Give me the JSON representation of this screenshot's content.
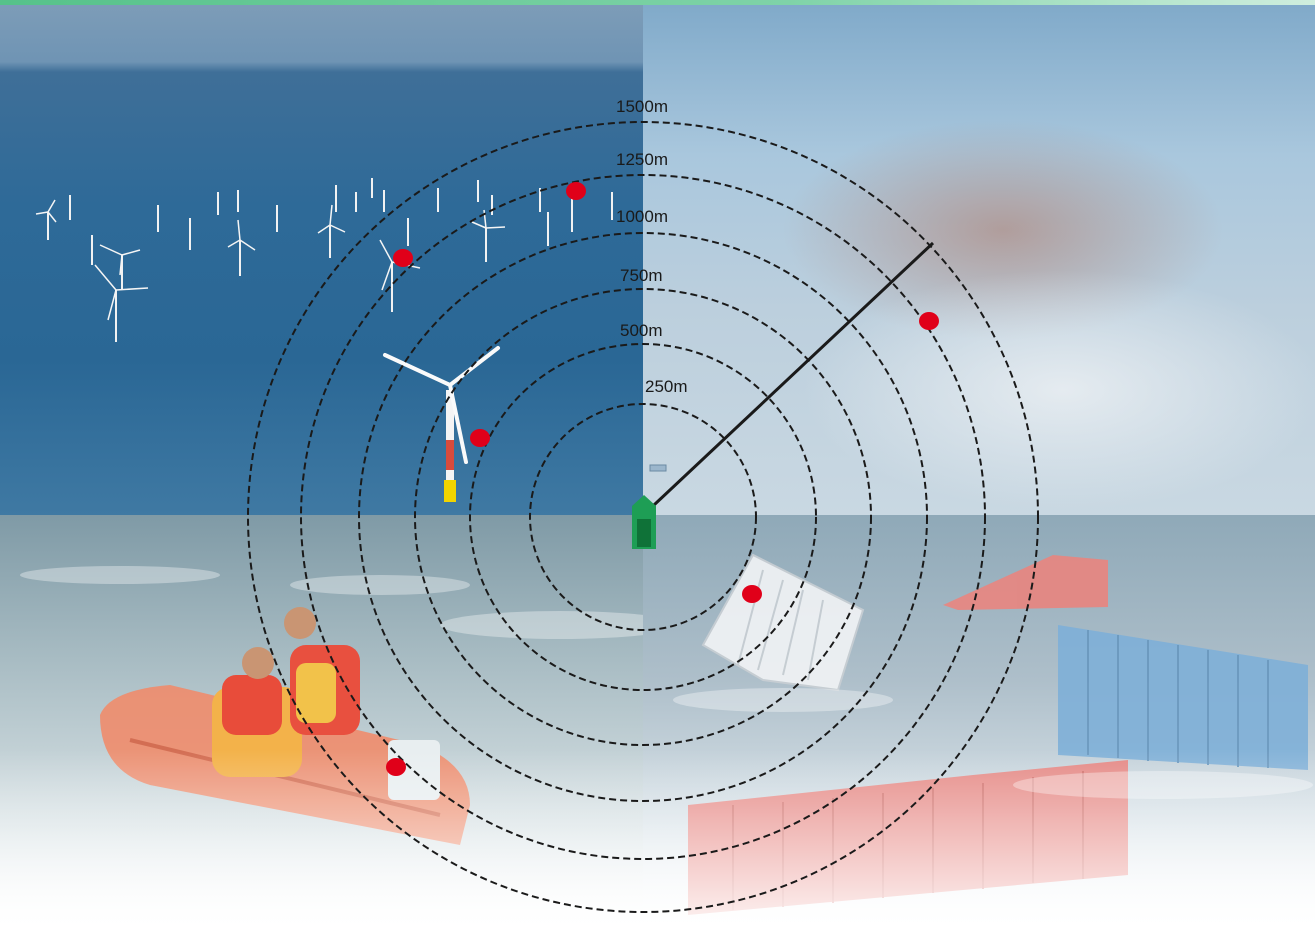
{
  "range_rings": [
    {
      "label": "250m"
    },
    {
      "label": "500m"
    },
    {
      "label": "750m"
    },
    {
      "label": "1000m"
    },
    {
      "label": "1250m"
    },
    {
      "label": "1500m"
    }
  ],
  "colors": {
    "vessel": "#1e9e55",
    "target": "#e00019",
    "ring": "#1a1a1a",
    "bearing_line": "#1a1a1a"
  },
  "scenes": [
    {
      "name": "offshore-wind-farm"
    },
    {
      "name": "sky"
    },
    {
      "name": "surf-rescue-boat"
    },
    {
      "name": "floating-containers"
    }
  ]
}
